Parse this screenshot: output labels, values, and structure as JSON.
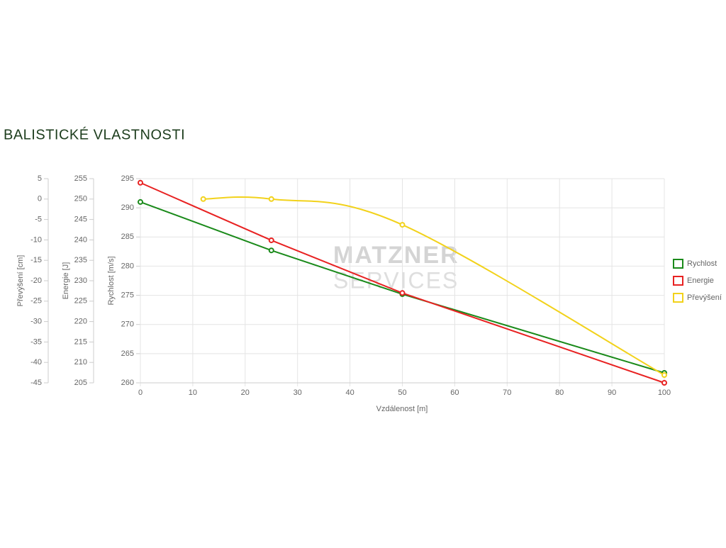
{
  "page_title": "BALISTICKÉ VLASTNOSTI",
  "watermark": {
    "line1": "MATZNER",
    "line2": "SERVICES"
  },
  "chart_data": {
    "type": "line",
    "x_label": "Vzdálenost [m]",
    "y_label": "Rychlost [m/s]",
    "y2_label": "Energie [J]",
    "y3_label": "Převýšení [cm]",
    "xlim": [
      0,
      100
    ],
    "xticks": [
      0,
      10,
      20,
      30,
      40,
      50,
      60,
      70,
      80,
      90,
      100
    ],
    "ylim": [
      260,
      295
    ],
    "yticks": [
      260,
      265,
      270,
      275,
      280,
      285,
      290,
      295
    ],
    "y2lim": [
      205,
      255
    ],
    "y2ticks": [
      205,
      210,
      215,
      220,
      225,
      230,
      235,
      240,
      245,
      250,
      255
    ],
    "y3lim": [
      -45,
      5
    ],
    "y3ticks": [
      -45,
      -40,
      -35,
      -30,
      -25,
      -20,
      -15,
      -10,
      -5,
      0,
      5
    ],
    "grid": true,
    "legend": "right",
    "series": [
      {
        "name": "Rychlost",
        "color": "#1a8a1a",
        "axis": "y",
        "x": [
          0,
          25,
          50,
          100
        ],
        "values": [
          291.0,
          282.7,
          275.2,
          261.7
        ]
      },
      {
        "name": "Energie",
        "color": "#e82222",
        "axis": "y2",
        "x": [
          0,
          25,
          50,
          100
        ],
        "values": [
          254,
          239.9,
          227.0,
          205
        ]
      },
      {
        "name": "Převýšení",
        "color": "#f2d21b",
        "axis": "y3",
        "smooth": true,
        "x": [
          12,
          25,
          50,
          100
        ],
        "values": [
          0,
          0,
          -6.3,
          -43.1
        ]
      }
    ]
  }
}
